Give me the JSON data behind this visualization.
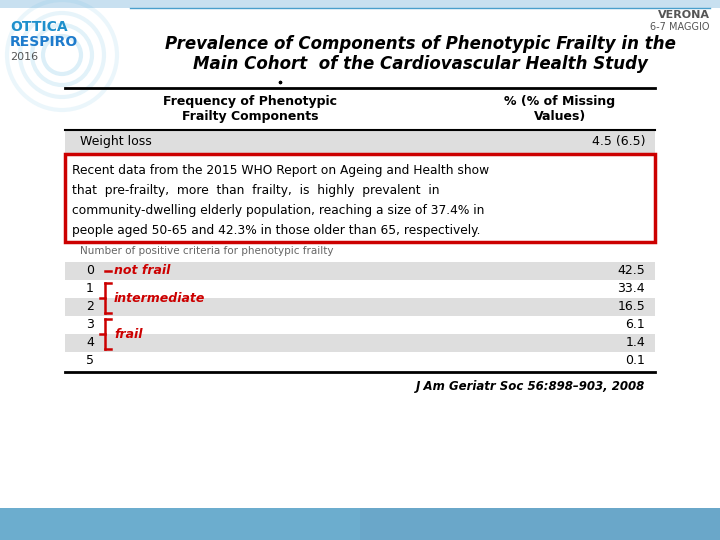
{
  "title_line1": "Prevalence of Components of Phenotypic Frailty in the",
  "title_line2": "Main Cohort  of the Cardiovascular Health Study",
  "top_right_text1": "VERONA",
  "top_right_text2": "6-7 MAGGIO",
  "table_header_col1": "Frequency of Phenotypic\nFrailty Components",
  "table_header_col2": "% (% of Missing\nValues)",
  "table_row1_label": "Weight loss",
  "table_row1_value": "4.5 (6.5)",
  "highlight_lines": [
    "Recent data from the 2015 WHO Report on Ageing and Health show",
    "that  pre-frailty,  more  than  frailty,  is  highly  prevalent  in",
    "community-dwelling elderly population, reaching a size of 37.4% in",
    "people aged 50-65 and 42.3% in those older than 65, respectively."
  ],
  "highlight_border_color": "#cc0000",
  "subtitle_lower": "Number of positive criteria for phenotypic frailty",
  "rows": [
    {
      "num": "0",
      "value": "42.5",
      "shaded": true
    },
    {
      "num": "1",
      "value": "33.4",
      "shaded": false
    },
    {
      "num": "2",
      "value": "16.5",
      "shaded": true
    },
    {
      "num": "3",
      "value": "6.1",
      "shaded": false
    },
    {
      "num": "4",
      "value": "1.4",
      "shaded": true
    },
    {
      "num": "5",
      "value": "0.1",
      "shaded": false
    }
  ],
  "citation": "J Am Geriatr Soc 56:898–903, 2008",
  "shaded_color": "#dedede",
  "logo_text1": "OTTICA",
  "logo_text2": "RESPIRO",
  "logo_year": "2016",
  "logo_color1": "#1e90cc",
  "logo_color2": "#1e7bcc",
  "top_line_color": "#4a9fcc",
  "red_label_color": "#cc0000"
}
